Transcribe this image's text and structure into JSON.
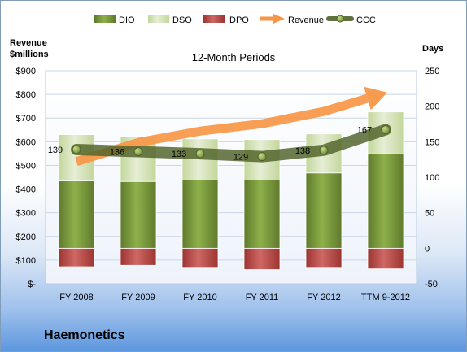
{
  "company": "Haemonetics",
  "chart_data": {
    "type": "bar",
    "title": "12-Month Periods",
    "ylabel_left": "Revenue $millions",
    "ylabel_right": "Days",
    "categories": [
      "FY 2008",
      "FY 2009",
      "FY 2010",
      "FY 2011",
      "FY 2012",
      "TTM 9-2012"
    ],
    "left_axis": {
      "range": [
        0,
        900
      ],
      "ticks": [
        0,
        100,
        200,
        300,
        400,
        500,
        600,
        700,
        800,
        900
      ],
      "tick_labels": [
        "$-",
        "$100",
        "$200",
        "$300",
        "$400",
        "$500",
        "$600",
        "$700",
        "$800",
        "$900"
      ]
    },
    "right_axis": {
      "range": [
        -50,
        250
      ],
      "ticks": [
        -50,
        0,
        50,
        100,
        150,
        200,
        250
      ],
      "tick_labels": [
        "-50",
        "0",
        "50",
        "100",
        "150",
        "200",
        "250"
      ]
    },
    "legend_position": "top",
    "series": [
      {
        "name": "DIO",
        "axis": "right",
        "kind": "stacked-bar",
        "color": "#77933c",
        "values": [
          95,
          94,
          96,
          96,
          106,
          133
        ]
      },
      {
        "name": "DSO",
        "axis": "right",
        "kind": "stacked-bar",
        "color": "#d7e4bd",
        "values": [
          65,
          63,
          58,
          57,
          55,
          59
        ]
      },
      {
        "name": "DPO",
        "axis": "right",
        "kind": "bar-below-zero",
        "color": "#c0504d",
        "values": [
          -26,
          -24,
          -28,
          -30,
          -28,
          -29
        ]
      },
      {
        "name": "Revenue",
        "axis": "left",
        "kind": "line-arrow",
        "color": "#f79646",
        "values": [
          516,
          597,
          645,
          676,
          728,
          806
        ]
      },
      {
        "name": "CCC",
        "axis": "right",
        "kind": "line",
        "color": "#4f6228",
        "values": [
          139,
          136,
          133,
          129,
          138,
          167
        ],
        "labels": [
          "139",
          "136",
          "133",
          "129",
          "138",
          "167"
        ]
      }
    ]
  }
}
